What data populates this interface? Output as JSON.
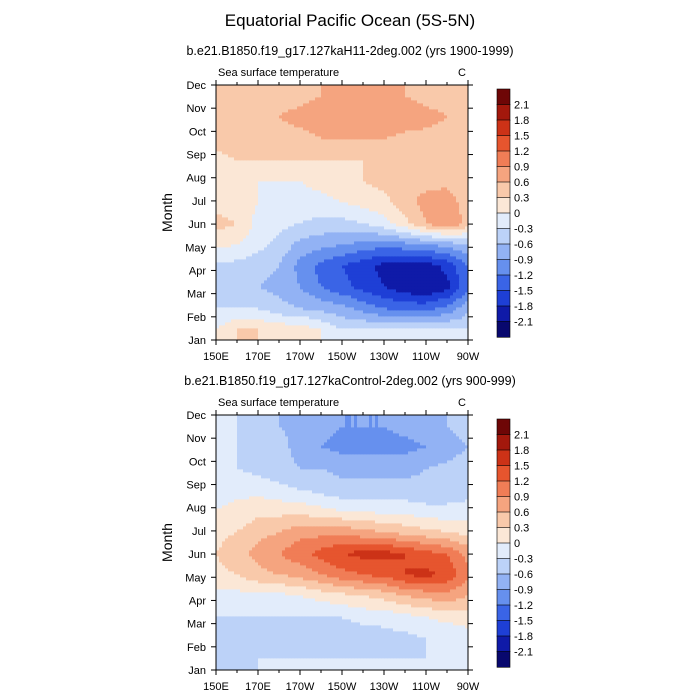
{
  "main_title": "Equatorial Pacific Ocean (5S-5N)",
  "chart_data": [
    {
      "type": "heatmap",
      "title": "b.e21.B1850.f19_g17.127kaH11-2deg.002 (yrs 1900-1999)",
      "subtitle_left": "Sea surface temperature",
      "subtitle_right": "C",
      "xlabel": "",
      "ylabel": "Month",
      "x_ticks": [
        "150E",
        "170E",
        "170W",
        "150W",
        "130W",
        "110W",
        "90W"
      ],
      "y_ticks": [
        "Jan",
        "Feb",
        "Mar",
        "Apr",
        "May",
        "Jun",
        "Jul",
        "Aug",
        "Sep",
        "Oct",
        "Nov",
        "Dec"
      ],
      "x_lon": [
        150,
        170,
        190,
        210,
        230,
        250,
        270
      ],
      "grid": [
        [
          0.0,
          0.3,
          0.3,
          0.2,
          0.2,
          0.0,
          -0.3,
          -0.3,
          -0.3,
          -0.3,
          -0.3,
          -0.3,
          -0.3
        ],
        [
          -0.3,
          -0.3,
          -0.3,
          -0.5,
          -0.6,
          -0.7,
          -0.8,
          -1.0,
          -1.2,
          -1.3,
          -1.3,
          -1.1,
          -0.7
        ],
        [
          -0.5,
          -0.5,
          -0.6,
          -0.7,
          -0.9,
          -1.2,
          -1.4,
          -1.6,
          -1.8,
          -2.0,
          -2.1,
          -1.9,
          -1.3
        ],
        [
          -0.4,
          -0.4,
          -0.5,
          -0.6,
          -1.0,
          -1.3,
          -1.5,
          -1.7,
          -1.9,
          -2.0,
          -2.0,
          -1.7,
          -1.2
        ],
        [
          0.1,
          0.0,
          -0.2,
          -0.4,
          -0.7,
          -0.8,
          -0.9,
          -1.0,
          -1.1,
          -1.0,
          -0.9,
          -0.8,
          -0.6
        ],
        [
          0.4,
          0.3,
          -0.1,
          -0.2,
          -0.3,
          -0.4,
          -0.4,
          -0.3,
          -0.1,
          0.2,
          0.6,
          0.9,
          0.5
        ],
        [
          0.2,
          0.1,
          0.0,
          -0.1,
          -0.1,
          -0.1,
          0.0,
          0.1,
          0.2,
          0.5,
          0.7,
          0.8,
          0.4
        ],
        [
          0.0,
          0.0,
          0.0,
          0.0,
          0.0,
          0.1,
          0.2,
          0.3,
          0.4,
          0.5,
          0.5,
          0.5,
          0.3
        ],
        [
          0.2,
          0.3,
          0.3,
          0.3,
          0.3,
          0.3,
          0.3,
          0.3,
          0.3,
          0.3,
          0.3,
          0.3,
          0.3
        ],
        [
          0.4,
          0.5,
          0.5,
          0.5,
          0.5,
          0.6,
          0.6,
          0.6,
          0.6,
          0.5,
          0.5,
          0.5,
          0.4
        ],
        [
          0.5,
          0.5,
          0.5,
          0.6,
          0.7,
          0.8,
          0.8,
          0.9,
          0.9,
          0.8,
          0.7,
          0.6,
          0.5
        ],
        [
          0.3,
          0.3,
          0.4,
          0.5,
          0.5,
          0.6,
          0.7,
          0.7,
          0.7,
          0.6,
          0.5,
          0.5,
          0.3
        ]
      ]
    },
    {
      "type": "heatmap",
      "title": "b.e21.B1850.f19_g17.127kaControl-2deg.002 (yrs 900-999)",
      "subtitle_left": "Sea surface temperature",
      "subtitle_right": "C",
      "xlabel": "",
      "ylabel": "Month",
      "x_ticks": [
        "150E",
        "170E",
        "170W",
        "150W",
        "130W",
        "110W",
        "90W"
      ],
      "y_ticks": [
        "Jan",
        "Feb",
        "Mar",
        "Apr",
        "May",
        "Jun",
        "Jul",
        "Aug",
        "Sep",
        "Oct",
        "Nov",
        "Dec"
      ],
      "x_lon": [
        150,
        170,
        190,
        210,
        230,
        250,
        270
      ],
      "grid": [
        [
          -0.4,
          -0.4,
          -0.3,
          -0.3,
          -0.3,
          -0.3,
          -0.3,
          -0.3,
          -0.3,
          -0.3,
          -0.3,
          -0.3,
          -0.3
        ],
        [
          -0.5,
          -0.5,
          -0.5,
          -0.5,
          -0.5,
          -0.5,
          -0.5,
          -0.5,
          -0.4,
          -0.4,
          -0.3,
          -0.3,
          -0.2
        ],
        [
          -0.3,
          -0.3,
          -0.3,
          -0.3,
          -0.3,
          -0.3,
          -0.3,
          -0.2,
          -0.2,
          -0.1,
          0.0,
          0.1,
          0.2
        ],
        [
          -0.1,
          -0.1,
          -0.1,
          -0.1,
          0.0,
          0.1,
          0.2,
          0.3,
          0.4,
          0.6,
          0.7,
          0.8,
          0.6
        ],
        [
          0.2,
          0.3,
          0.5,
          0.6,
          0.7,
          0.9,
          1.1,
          1.2,
          1.3,
          1.5,
          1.6,
          1.4,
          1.0
        ],
        [
          0.3,
          0.5,
          0.7,
          0.9,
          1.1,
          1.3,
          1.5,
          1.6,
          1.6,
          1.5,
          1.3,
          1.2,
          0.8
        ],
        [
          0.2,
          0.3,
          0.5,
          0.6,
          0.8,
          0.8,
          0.8,
          0.7,
          0.6,
          0.5,
          0.4,
          0.3,
          0.2
        ],
        [
          0.0,
          0.1,
          0.2,
          0.2,
          0.2,
          0.1,
          0.0,
          0.0,
          -0.1,
          -0.1,
          -0.2,
          -0.2,
          -0.2
        ],
        [
          -0.1,
          -0.1,
          -0.1,
          -0.2,
          -0.3,
          -0.4,
          -0.5,
          -0.5,
          -0.5,
          -0.5,
          -0.5,
          -0.5,
          -0.4
        ],
        [
          -0.2,
          -0.3,
          -0.4,
          -0.5,
          -0.6,
          -0.6,
          -0.7,
          -0.7,
          -0.7,
          -0.7,
          -0.6,
          -0.5,
          -0.4
        ],
        [
          -0.2,
          -0.3,
          -0.4,
          -0.5,
          -0.7,
          -0.9,
          -1.0,
          -1.0,
          -1.0,
          -1.0,
          -0.9,
          -0.8,
          -0.6
        ],
        [
          -0.3,
          -0.3,
          -0.4,
          -0.6,
          -0.7,
          -0.8,
          -0.9,
          -0.9,
          -0.9,
          -0.8,
          -0.7,
          -0.6,
          -0.4
        ]
      ]
    }
  ],
  "colorbar": {
    "labels": [
      "2.1",
      "1.8",
      "1.5",
      "1.2",
      "0.9",
      "0.6",
      "0.3",
      "0",
      "-0.3",
      "-0.6",
      "-0.9",
      "-1.2",
      "-1.5",
      "-1.8",
      "-2.1"
    ],
    "levels": [
      -2.1,
      -1.8,
      -1.5,
      -1.2,
      -0.9,
      -0.6,
      -0.3,
      0,
      0.3,
      0.6,
      0.9,
      1.2,
      1.5,
      1.8,
      2.1
    ],
    "colors": [
      "#08086e",
      "#0f1aa8",
      "#1e3fd6",
      "#3a64e6",
      "#6690ee",
      "#92b2f4",
      "#bcd2f8",
      "#e2ecfb",
      "#fbe7d6",
      "#f9c9aa",
      "#f5a47f",
      "#f07d56",
      "#e6552e",
      "#cc3217",
      "#a3180c",
      "#6e0606"
    ]
  }
}
